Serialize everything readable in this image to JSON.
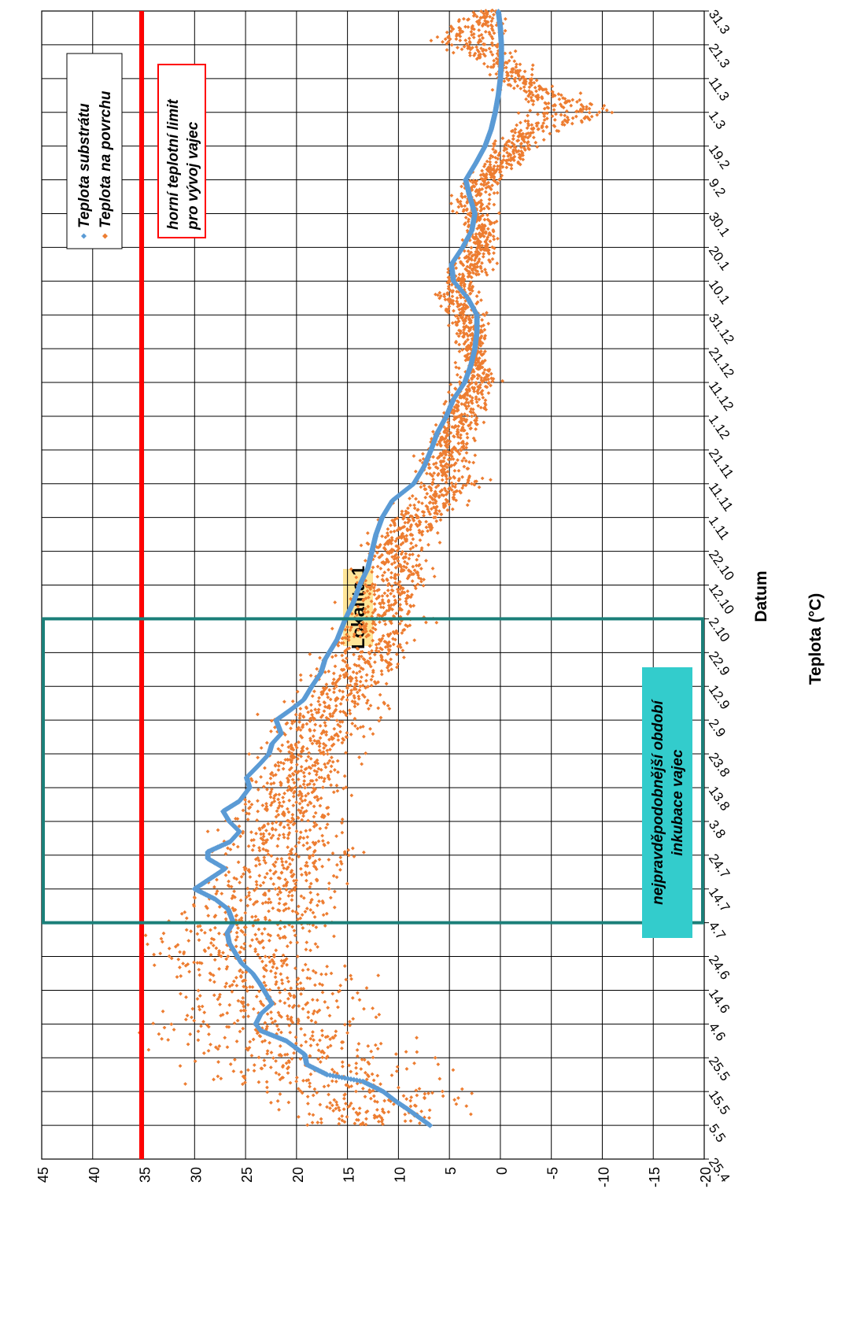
{
  "chart_data": {
    "type": "scatter",
    "title": "Lokalita 1",
    "xlabel": "Datum",
    "ylabel": "Teplota (°C)",
    "ylim": [
      -20,
      45
    ],
    "y_ticks": [
      -20,
      -15,
      -10,
      -5,
      0,
      5,
      10,
      15,
      20,
      25,
      30,
      35,
      40,
      45
    ],
    "x_ticks": [
      "25.4",
      "5.5",
      "15.5",
      "25.5",
      "4.6",
      "14.6",
      "24.6",
      "4.7",
      "14.7",
      "24.7",
      "3.8",
      "13.8",
      "23.8",
      "2.9",
      "12.9",
      "22.9",
      "2.10",
      "12.10",
      "22.10",
      "1.11",
      "11.11",
      "21.11",
      "1.12",
      "11.12",
      "21.12",
      "31.12",
      "10.1",
      "20.1",
      "30.1",
      "9.2",
      "19.2",
      "1.3",
      "11.3",
      "21.3",
      "31.3"
    ],
    "grid": true,
    "legend_position": "top-right",
    "colors": {
      "substrate": "#5b9bd5",
      "surface": "#ed7d31",
      "limit": "#ff0000",
      "period": "#1b7f79",
      "period_label_bg": "#33cccc",
      "title_bg": "#ffe699"
    },
    "series": [
      {
        "name": "Teplota substrátu",
        "marker": "diamond",
        "points": [
          [
            "5.5",
            6.9
          ],
          [
            "10.5",
            9.2
          ],
          [
            "12.5",
            10.2
          ],
          [
            "15.5",
            11.5
          ],
          [
            "18.5",
            13.5
          ],
          [
            "20.5",
            17.0
          ],
          [
            "23.5",
            19.0
          ],
          [
            "26.5",
            19.2
          ],
          [
            "30.5",
            21.0
          ],
          [
            "2.6",
            23.5
          ],
          [
            "4.6",
            24.0
          ],
          [
            "7.6",
            23.5
          ],
          [
            "10.6",
            22.4
          ],
          [
            "13.6",
            23.0
          ],
          [
            "16.6",
            23.6
          ],
          [
            "19.6",
            24.3
          ],
          [
            "22.6",
            25.4
          ],
          [
            "25.6",
            26.0
          ],
          [
            "28.6",
            26.6
          ],
          [
            "1.7",
            26.8
          ],
          [
            "4.7",
            26.2
          ],
          [
            "8.7",
            26.7
          ],
          [
            "11.7",
            28.0
          ],
          [
            "14.7",
            30.0
          ],
          [
            "17.7",
            28.5
          ],
          [
            "20.7",
            27.0
          ],
          [
            "23.7",
            28.7
          ],
          [
            "25.7",
            28.7
          ],
          [
            "28.7",
            26.5
          ],
          [
            "31.7",
            25.6
          ],
          [
            "3.8",
            26.6
          ],
          [
            "6.8",
            27.2
          ],
          [
            "9.8",
            25.6
          ],
          [
            "13.8",
            24.6
          ],
          [
            "16.8",
            24.9
          ],
          [
            "20.8",
            23.6
          ],
          [
            "23.8",
            22.7
          ],
          [
            "26.8",
            22.4
          ],
          [
            "29.8",
            21.5
          ],
          [
            "2.9",
            22.0
          ],
          [
            "5.9",
            20.6
          ],
          [
            "8.9",
            19.3
          ],
          [
            "12.9",
            18.5
          ],
          [
            "16.9",
            17.6
          ],
          [
            "20.9",
            17.2
          ],
          [
            "23.9",
            16.6
          ],
          [
            "26.9",
            16.0
          ],
          [
            "29.9",
            15.6
          ],
          [
            "2.10",
            15.2
          ],
          [
            "7.10",
            14.4
          ],
          [
            "12.10",
            13.8
          ],
          [
            "17.10",
            13.0
          ],
          [
            "22.10",
            12.6
          ],
          [
            "27.10",
            12.2
          ],
          [
            "1.11",
            11.6
          ],
          [
            "6.11",
            10.6
          ],
          [
            "11.11",
            8.5
          ],
          [
            "16.11",
            7.5
          ],
          [
            "21.11",
            6.8
          ],
          [
            "26.11",
            6.2
          ],
          [
            "1.12",
            5.3
          ],
          [
            "6.12",
            4.6
          ],
          [
            "11.12",
            3.5
          ],
          [
            "16.12",
            2.9
          ],
          [
            "21.12",
            2.5
          ],
          [
            "26.12",
            2.3
          ],
          [
            "31.12",
            2.3
          ],
          [
            "5.1",
            3.2
          ],
          [
            "10.1",
            4.6
          ],
          [
            "15.1",
            4.8
          ],
          [
            "20.1",
            3.7
          ],
          [
            "25.1",
            2.8
          ],
          [
            "30.1",
            2.5
          ],
          [
            "4.2",
            3.0
          ],
          [
            "9.2",
            3.4
          ],
          [
            "14.2",
            2.4
          ],
          [
            "19.2",
            1.5
          ],
          [
            "24.2",
            0.9
          ],
          [
            "1.3",
            0.5
          ],
          [
            "6.3",
            0.2
          ],
          [
            "11.3",
            0.0
          ],
          [
            "16.3",
            -0.1
          ],
          [
            "21.3",
            -0.1
          ],
          [
            "26.3",
            0.0
          ],
          [
            "31.3",
            0.2
          ]
        ]
      },
      {
        "name": "Teplota na povrchu",
        "marker": "diamond",
        "envelope": [
          [
            "5.5",
            1.5,
            24.5
          ],
          [
            "10.5",
            -1.0,
            26.5
          ],
          [
            "15.5",
            -2.5,
            29.5
          ],
          [
            "20.5",
            3.0,
            35.5
          ],
          [
            "25.5",
            2.5,
            35.0
          ],
          [
            "30.5",
            5.5,
            38.5
          ],
          [
            "4.6",
            6.5,
            39.5
          ],
          [
            "9.6",
            8.0,
            37.0
          ],
          [
            "14.6",
            9.0,
            35.5
          ],
          [
            "19.6",
            9.5,
            36.5
          ],
          [
            "24.6",
            10.0,
            39.5
          ],
          [
            "29.6",
            11.5,
            37.0
          ],
          [
            "4.7",
            11.0,
            36.5
          ],
          [
            "9.7",
            12.5,
            34.5
          ],
          [
            "14.7",
            12.5,
            32.0
          ],
          [
            "19.7",
            12.0,
            31.5
          ],
          [
            "24.7",
            11.5,
            30.0
          ],
          [
            "29.7",
            13.0,
            30.0
          ],
          [
            "3.8",
            12.5,
            30.5
          ],
          [
            "8.8",
            12.5,
            29.0
          ],
          [
            "13.8",
            12.0,
            27.5
          ],
          [
            "18.8",
            12.5,
            26.5
          ],
          [
            "23.8",
            12.5,
            26.0
          ],
          [
            "28.8",
            11.0,
            25.5
          ],
          [
            "2.9",
            10.0,
            25.0
          ],
          [
            "7.9",
            9.0,
            23.0
          ],
          [
            "12.9",
            8.5,
            21.5
          ],
          [
            "17.9",
            8.0,
            21.0
          ],
          [
            "22.9",
            7.0,
            19.5
          ],
          [
            "27.9",
            6.5,
            18.5
          ],
          [
            "2.10",
            5.5,
            17.5
          ],
          [
            "7.10",
            5.0,
            16.5
          ],
          [
            "12.10",
            5.0,
            16.0
          ],
          [
            "17.10",
            5.0,
            15.5
          ],
          [
            "22.10",
            5.5,
            15.0
          ],
          [
            "27.10",
            5.5,
            14.0
          ],
          [
            "1.11",
            4.0,
            12.5
          ],
          [
            "6.11",
            1.0,
            11.5
          ],
          [
            "11.11",
            0.0,
            10.0
          ],
          [
            "16.11",
            1.5,
            9.5
          ],
          [
            "21.11",
            1.0,
            9.0
          ],
          [
            "26.11",
            1.0,
            8.5
          ],
          [
            "1.12",
            0.5,
            7.5
          ],
          [
            "6.12",
            0.0,
            6.5
          ],
          [
            "11.12",
            -1.0,
            5.5
          ],
          [
            "16.12",
            0.5,
            4.5
          ],
          [
            "21.12",
            0.5,
            5.0
          ],
          [
            "26.12",
            0.5,
            5.5
          ],
          [
            "31.12",
            0.0,
            6.5
          ],
          [
            "5.1",
            1.0,
            7.5
          ],
          [
            "10.1",
            1.0,
            6.5
          ],
          [
            "15.1",
            0.0,
            5.5
          ],
          [
            "20.1",
            -0.5,
            4.5
          ],
          [
            "25.1",
            -0.5,
            4.0
          ],
          [
            "30.1",
            0.0,
            5.0
          ],
          [
            "4.2",
            0.0,
            5.5
          ],
          [
            "9.2",
            -1.0,
            4.0
          ],
          [
            "14.2",
            -3.0,
            3.0
          ],
          [
            "19.2",
            -5.0,
            1.5
          ],
          [
            "24.2",
            -6.5,
            1.0
          ],
          [
            "1.3",
            -15.5,
            0.5
          ],
          [
            "6.3",
            -9.0,
            1.0
          ],
          [
            "11.3",
            -5.0,
            2.0
          ],
          [
            "16.3",
            -3.0,
            3.0
          ],
          [
            "21.3",
            -2.5,
            9.5
          ],
          [
            "26.3",
            -1.5,
            6.0
          ],
          [
            "31.3",
            -1.0,
            3.5
          ]
        ]
      },
      {
        "name": "horní teplotní limit pro vývoj vajec",
        "type": "line",
        "value": 35.2
      }
    ],
    "annotations": [
      {
        "type": "region",
        "from": "4.7",
        "to": "2.10",
        "label": "nejpravděpodobnější období inkubace vajec"
      }
    ]
  },
  "legend": {
    "substrate": "Teplota substrátu",
    "surface": "Teplota na povrchu"
  },
  "limit_label": {
    "line1": "horní teplotní limit",
    "line2": "pro vývoj vajec"
  },
  "period_label": {
    "line1": "nejpravděpodobnější období",
    "line2": "inkubace vajec"
  }
}
